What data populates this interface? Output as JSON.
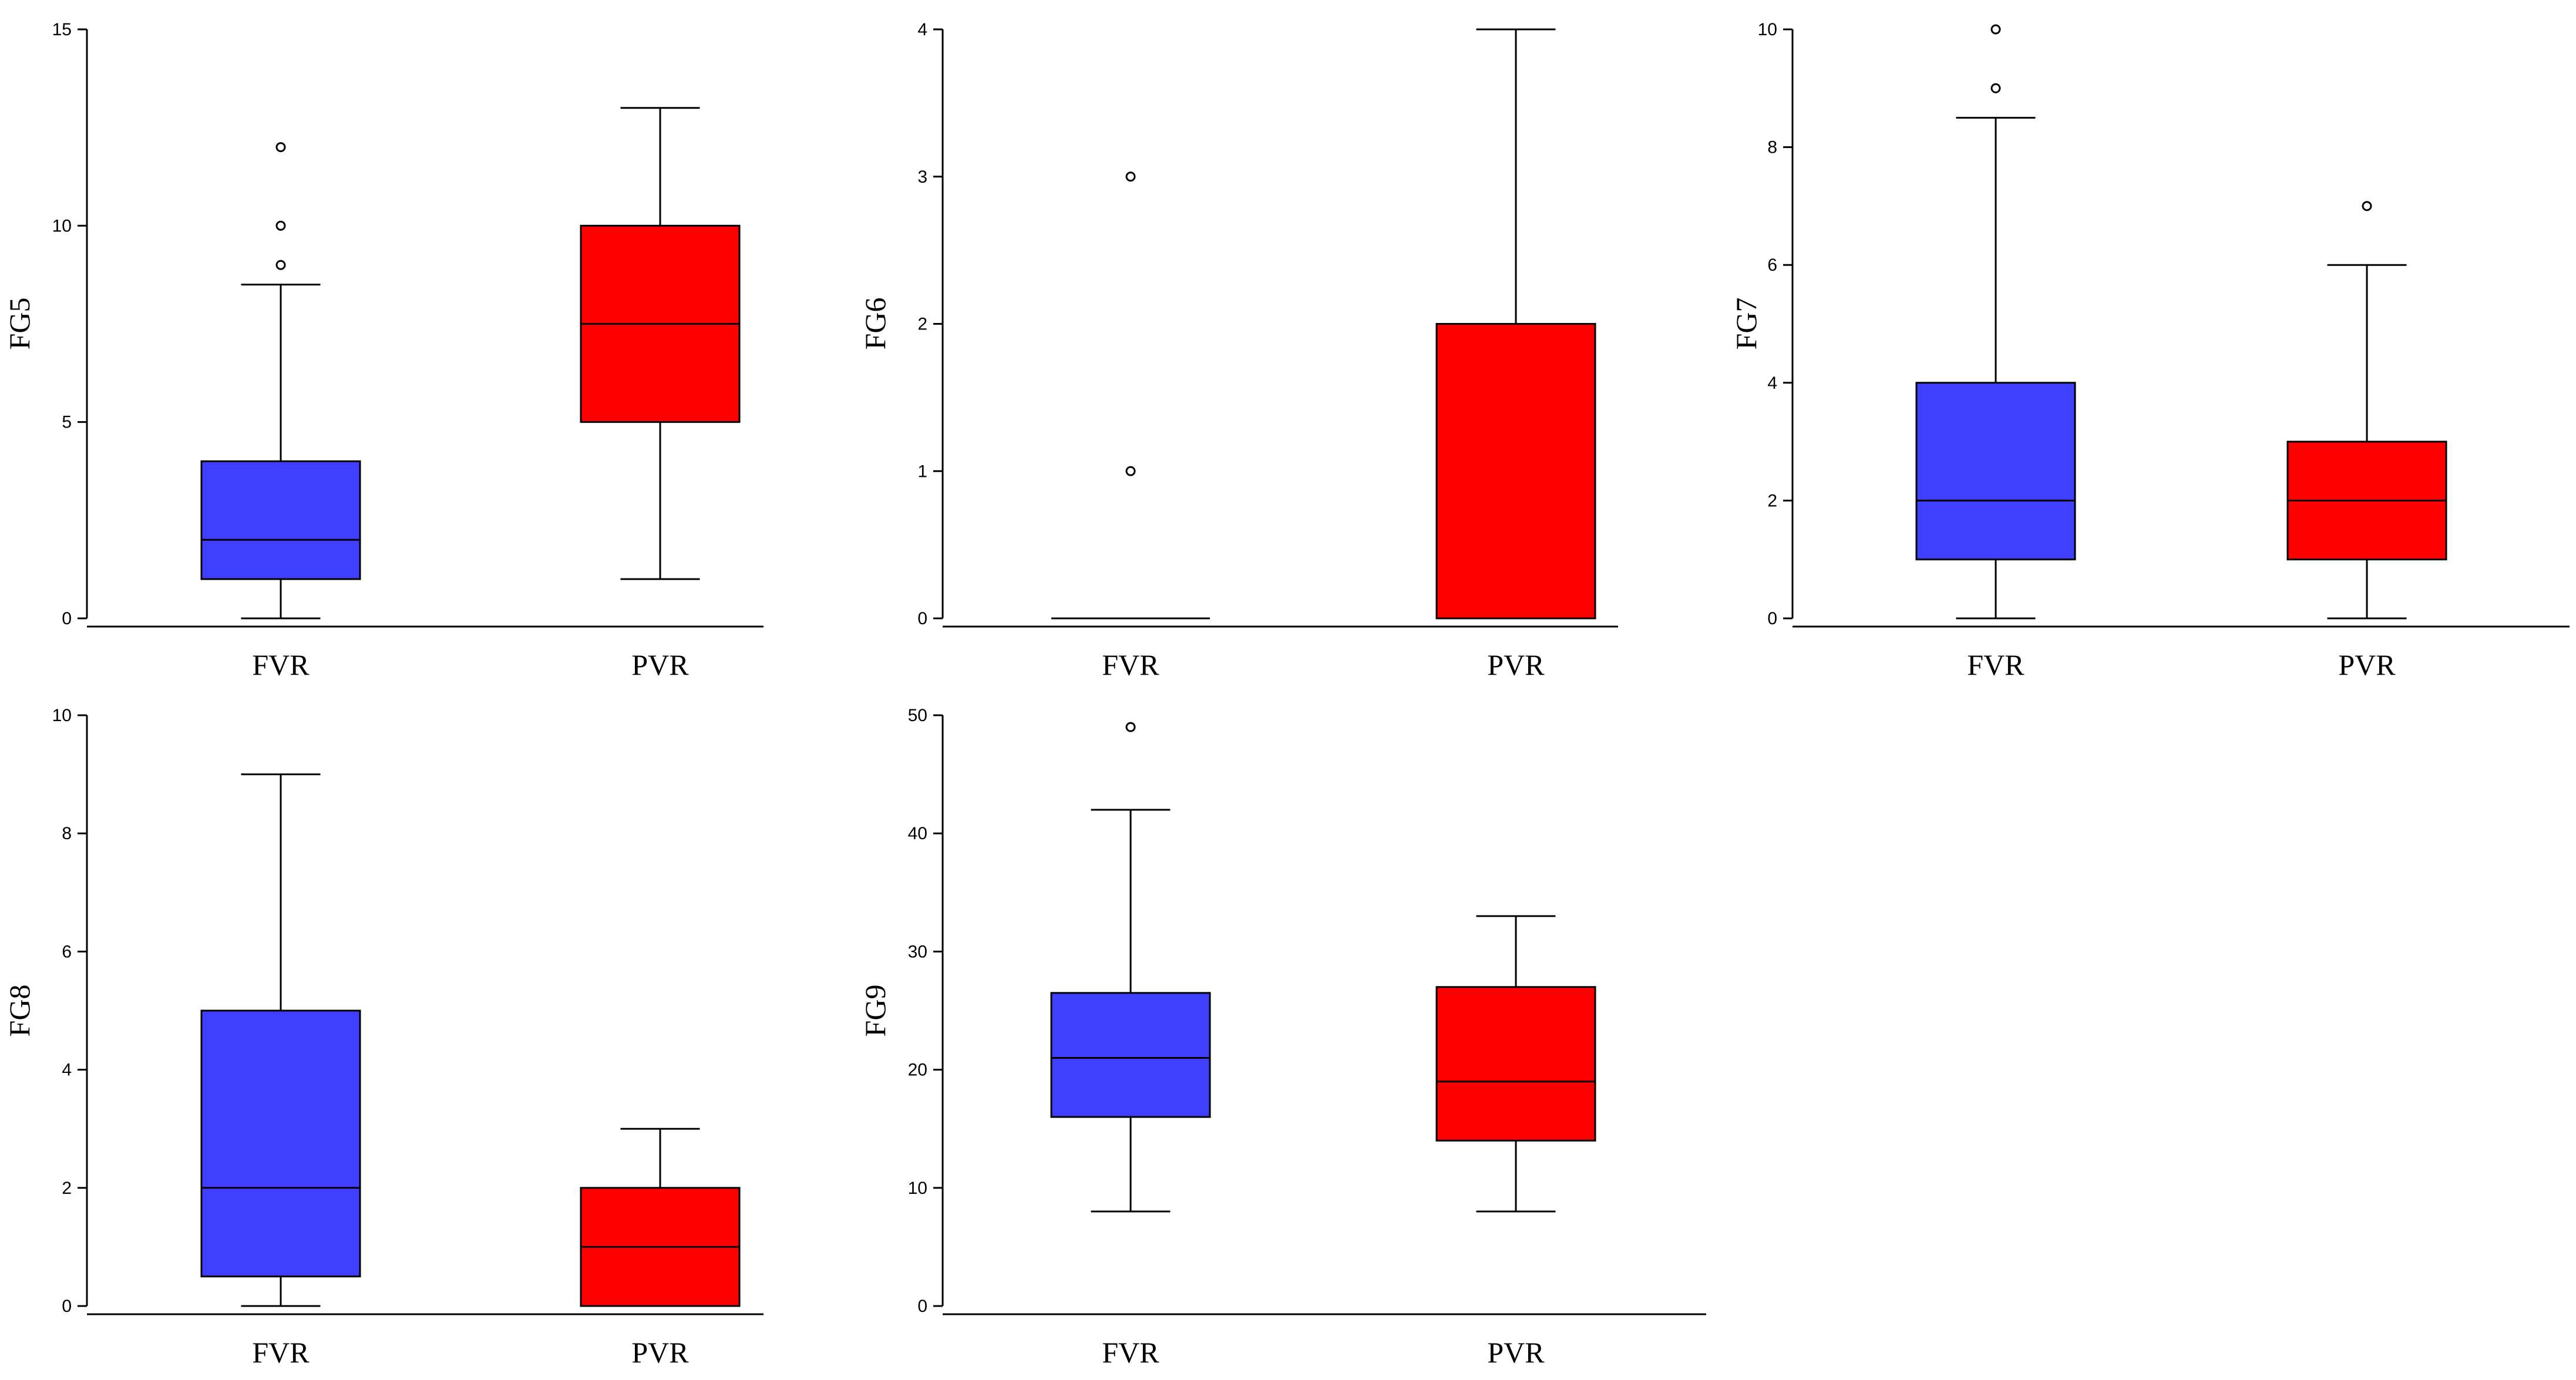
{
  "chart_data": [
    {
      "type": "box",
      "ylabel": "FG5",
      "ylim": [
        0,
        15
      ],
      "yticks": [
        0,
        5,
        10,
        15
      ],
      "categories": [
        "FVR",
        "PVR"
      ],
      "boxes": [
        {
          "name": "FVR",
          "color": "#3f3fff",
          "min": 0,
          "q1": 1,
          "median": 2,
          "q3": 4,
          "max": 8.5,
          "outliers": [
            9,
            10,
            12
          ]
        },
        {
          "name": "PVR",
          "color": "#ff0000",
          "min": 1,
          "q1": 5,
          "median": 7.5,
          "q3": 10,
          "max": 13,
          "outliers": []
        }
      ]
    },
    {
      "type": "box",
      "ylabel": "FG6",
      "ylim": [
        0,
        4
      ],
      "yticks": [
        0,
        1,
        2,
        3,
        4
      ],
      "categories": [
        "FVR",
        "PVR"
      ],
      "boxes": [
        {
          "name": "FVR",
          "color": "#3f3fff",
          "min": 0,
          "q1": 0,
          "median": 0,
          "q3": 0,
          "max": 0,
          "outliers": [
            1,
            3
          ]
        },
        {
          "name": "PVR",
          "color": "#ff0000",
          "min": 0,
          "q1": 0,
          "median": 0,
          "q3": 2,
          "max": 4,
          "outliers": []
        }
      ]
    },
    {
      "type": "box",
      "ylabel": "FG7",
      "ylim": [
        0,
        10
      ],
      "yticks": [
        0,
        2,
        4,
        6,
        8,
        10
      ],
      "categories": [
        "FVR",
        "PVR"
      ],
      "boxes": [
        {
          "name": "FVR",
          "color": "#3f3fff",
          "min": 0,
          "q1": 1,
          "median": 2,
          "q3": 4,
          "max": 8.5,
          "outliers": [
            9,
            10
          ]
        },
        {
          "name": "PVR",
          "color": "#ff0000",
          "min": 0,
          "q1": 1,
          "median": 2,
          "q3": 3,
          "max": 6,
          "outliers": [
            7
          ]
        }
      ]
    },
    {
      "type": "box",
      "ylabel": "FG8",
      "ylim": [
        0,
        10
      ],
      "yticks": [
        0,
        2,
        4,
        6,
        8,
        10
      ],
      "categories": [
        "FVR",
        "PVR"
      ],
      "boxes": [
        {
          "name": "FVR",
          "color": "#3f3fff",
          "min": 0,
          "q1": 0.5,
          "median": 2,
          "q3": 5,
          "max": 9,
          "outliers": []
        },
        {
          "name": "PVR",
          "color": "#ff0000",
          "min": 0,
          "q1": 0,
          "median": 1,
          "q3": 2,
          "max": 3,
          "outliers": []
        }
      ]
    },
    {
      "type": "box",
      "ylabel": "FG9",
      "ylim": [
        0,
        50
      ],
      "yticks": [
        0,
        10,
        20,
        30,
        40,
        50
      ],
      "categories": [
        "FVR",
        "PVR"
      ],
      "boxes": [
        {
          "name": "FVR",
          "color": "#3f3fff",
          "min": 8,
          "q1": 16,
          "median": 21,
          "q3": 26.5,
          "max": 42,
          "outliers": [
            49
          ]
        },
        {
          "name": "PVR",
          "color": "#ff0000",
          "min": 8,
          "q1": 14,
          "median": 19,
          "q3": 27,
          "max": 33,
          "outliers": []
        }
      ]
    }
  ]
}
